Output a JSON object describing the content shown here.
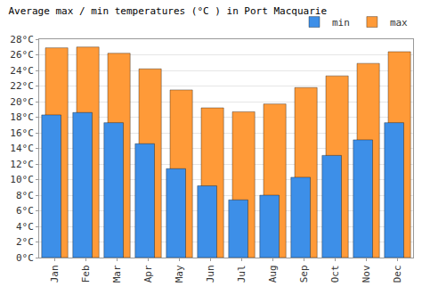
{
  "chart_data": {
    "type": "bar",
    "title": "Average max / min temperatures (°C ) in Port Macquarie",
    "categories": [
      "Jan",
      "Feb",
      "Mar",
      "Apr",
      "May",
      "Jun",
      "Jul",
      "Aug",
      "Sep",
      "Oct",
      "Nov",
      "Dec"
    ],
    "series": [
      {
        "name": "min",
        "color": "#3d8fe8",
        "values": [
          18.3,
          18.6,
          17.3,
          14.6,
          11.4,
          9.2,
          7.4,
          8.0,
          10.3,
          13.1,
          15.1,
          17.3
        ]
      },
      {
        "name": "max",
        "color": "#ff9a38",
        "values": [
          26.9,
          27.0,
          26.2,
          24.2,
          21.5,
          19.2,
          18.7,
          19.7,
          21.8,
          23.3,
          24.9,
          26.4
        ]
      }
    ],
    "ylim": [
      0,
      28
    ],
    "yticks": [
      {
        "value": 0,
        "label": "0°C"
      },
      {
        "value": 2,
        "label": "2°C"
      },
      {
        "value": 4,
        "label": "4°C"
      },
      {
        "value": 6,
        "label": "6°C"
      },
      {
        "value": 8,
        "label": "8°C"
      },
      {
        "value": 10,
        "label": "10°C"
      },
      {
        "value": 12,
        "label": "12°C"
      },
      {
        "value": 14,
        "label": "14°C"
      },
      {
        "value": 16,
        "label": "16°C"
      },
      {
        "value": 18,
        "label": "18°C"
      },
      {
        "value": 20,
        "label": "20°C"
      },
      {
        "value": 22,
        "label": "22°C"
      },
      {
        "value": 24,
        "label": "24°C"
      },
      {
        "value": 26,
        "label": "26°C"
      },
      {
        "value": 28,
        "label": "28°C"
      }
    ],
    "grid": true,
    "legend": "top-right"
  }
}
